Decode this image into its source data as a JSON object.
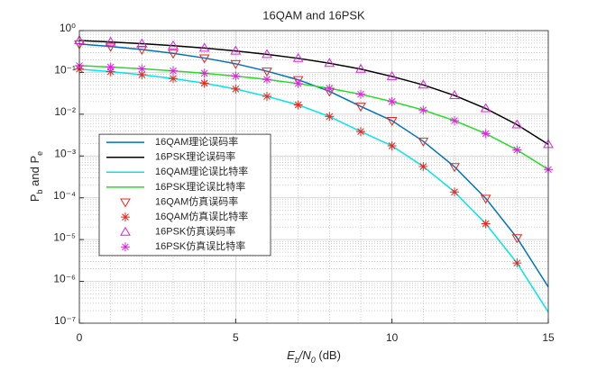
{
  "chart_data": {
    "type": "line",
    "title": "16QAM and 16PSK",
    "xlabel": [
      "E",
      "b",
      "/N",
      "0",
      " (dB)"
    ],
    "ylabel": [
      "P",
      "b",
      " and P",
      "e"
    ],
    "x": [
      0,
      1,
      2,
      3,
      4,
      5,
      6,
      7,
      8,
      9,
      10,
      11,
      12,
      13,
      14,
      15
    ],
    "xlim": [
      0,
      15
    ],
    "xticks": [
      0,
      5,
      10,
      15
    ],
    "ylim": [
      1e-07,
      1
    ],
    "yscale": "log",
    "yticks": [
      {
        "value": 1e-07,
        "label": "10⁻⁷"
      },
      {
        "value": 1e-06,
        "label": "10⁻⁶"
      },
      {
        "value": 1e-05,
        "label": "10⁻⁵"
      },
      {
        "value": 0.0001,
        "label": "10⁻⁴"
      },
      {
        "value": 0.001,
        "label": "10⁻³"
      },
      {
        "value": 0.01,
        "label": "10⁻²"
      },
      {
        "value": 0.1,
        "label": "10⁻¹"
      },
      {
        "value": 1,
        "label": "10⁰"
      }
    ],
    "grid": true,
    "minor_grid": true,
    "legend_position": "west",
    "series": [
      {
        "name": "16QAM理论误码率",
        "color": "#0072bd",
        "marker": "none",
        "values": [
          0.479,
          0.417,
          0.352,
          0.286,
          0.221,
          0.161,
          0.107,
          0.0667,
          0.0352,
          0.0154,
          0.007,
          0.00225,
          0.000553,
          9.7e-05,
          1.1e-05,
          7.35e-07
        ]
      },
      {
        "name": "16PSK理论误码率",
        "color": "#000000",
        "marker": "none",
        "values": [
          0.581,
          0.536,
          0.487,
          0.436,
          0.382,
          0.326,
          0.271,
          0.217,
          0.166,
          0.12,
          0.08,
          0.0503,
          0.0281,
          0.0137,
          0.00562,
          0.0019
        ]
      },
      {
        "name": "16QAM理论误比特率",
        "color": "#00e5ee",
        "marker": "none",
        "values": [
          0.12,
          0.104,
          0.088,
          0.0714,
          0.0552,
          0.0401,
          0.0267,
          0.0167,
          0.0088,
          0.00385,
          0.00175,
          0.00056,
          0.000138,
          2.4e-05,
          2.75e-06,
          1.84e-07
        ]
      },
      {
        "name": "16PSK理论误比特率",
        "color": "#22dd22",
        "marker": "none",
        "values": [
          0.145,
          0.134,
          0.122,
          0.109,
          0.0955,
          0.0815,
          0.0678,
          0.0541,
          0.0415,
          0.03,
          0.02,
          0.0126,
          0.007,
          0.00343,
          0.0014,
          0.000475
        ]
      },
      {
        "name": "16QAM仿真误码率",
        "color": "#e8281e",
        "marker": "triangle-down",
        "values": [
          0.479,
          0.417,
          0.352,
          0.286,
          0.221,
          0.161,
          0.107,
          0.0667,
          0.0352,
          0.0154,
          0.007,
          0.00225,
          0.000553,
          9.7e-05,
          1.1e-05,
          null
        ]
      },
      {
        "name": "16QAM仿真误比特率",
        "color": "#e8281e",
        "marker": "asterisk",
        "values": [
          0.12,
          0.104,
          0.088,
          0.0714,
          0.0552,
          0.0401,
          0.0267,
          0.0167,
          0.0088,
          0.00385,
          0.00175,
          0.00056,
          0.000138,
          2.4e-05,
          2.75e-06,
          null
        ]
      },
      {
        "name": "16PSK仿真误码率",
        "color": "#e020e0",
        "marker": "triangle-up",
        "values": [
          0.581,
          0.536,
          0.487,
          0.436,
          0.382,
          0.326,
          0.271,
          0.217,
          0.166,
          0.12,
          0.08,
          0.0503,
          0.0281,
          0.0137,
          0.00562,
          0.0019
        ]
      },
      {
        "name": "16PSK仿真误比特率",
        "color": "#e020e0",
        "marker": "asterisk",
        "values": [
          0.145,
          0.134,
          0.122,
          0.109,
          0.0955,
          0.0815,
          0.0678,
          0.0541,
          0.0415,
          0.03,
          0.02,
          0.0126,
          0.007,
          0.00343,
          0.0014,
          0.000475
        ]
      }
    ]
  }
}
